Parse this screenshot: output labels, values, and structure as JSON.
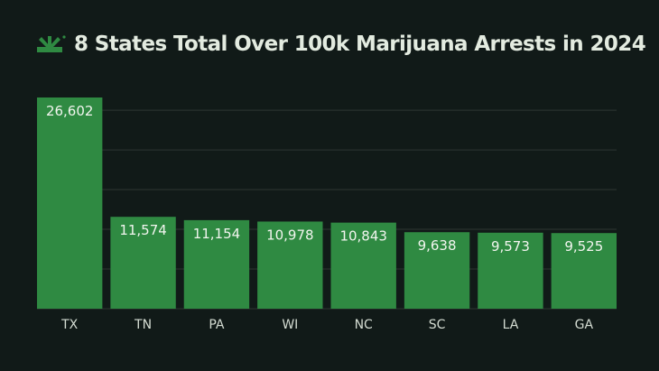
{
  "title": "8 States Total Over 100k Marijuana Arrests in 2024",
  "logo": "cannabis-leaf-logo",
  "colors": {
    "background": "#111a18",
    "bar": "#2f8a42",
    "grid": "#2e3632",
    "text": "#e3ebe0"
  },
  "chart_data": {
    "type": "bar",
    "title": "8 States Total Over 100k Marijuana Arrests in 2024",
    "categories": [
      "TX",
      "TN",
      "PA",
      "WI",
      "NC",
      "SC",
      "LA",
      "GA"
    ],
    "values": [
      26602,
      11574,
      11154,
      10978,
      10843,
      9638,
      9573,
      9525
    ],
    "value_labels": [
      "26,602",
      "11,574",
      "11,154",
      "10,978",
      "10,843",
      "9,638",
      "9,573",
      "9,525"
    ],
    "xlabel": "",
    "ylabel": "",
    "ylim": [
      0,
      26602
    ],
    "grid": true,
    "grid_step": 5000,
    "y_tick_labels_shown": false,
    "legend": "none"
  }
}
